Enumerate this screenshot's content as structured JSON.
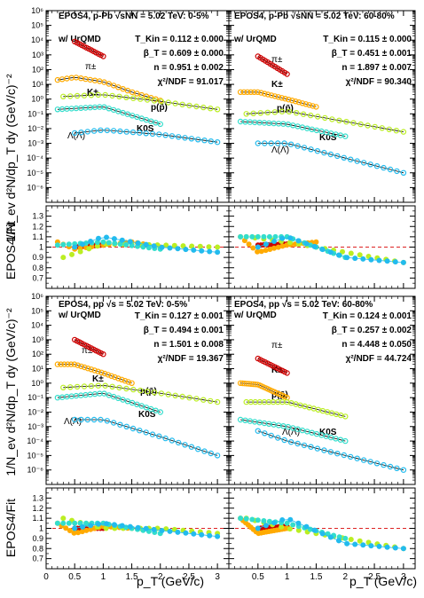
{
  "figure": {
    "ylabel_spectra": "1/N_ev d²N/dp_T dy (GeV/c)⁻²",
    "ylabel_ratio": "EPOS4/Fit",
    "xlabel": "p_T (GeV/c)"
  },
  "colors": {
    "pion": "#cc0000",
    "kaon": "#ffaa00",
    "proton": "#bbee22",
    "kshort": "#33ddcc",
    "lambda": "#22bbee",
    "fit_line": "#000000",
    "unity_line": "#dd2222"
  },
  "chart_data": [
    {
      "type": "scatter",
      "panel": "top-left",
      "title": "EPOS4, p-Pb √sNN = 5.02 TeV: 0-5%",
      "subtitle": "w/ UrQMD",
      "fit": {
        "tkin": "T_Kin = 0.112 ± 0.000",
        "beta": "β_T = 0.609 ± 0.000",
        "n": "n = 0.951 ± 0.002",
        "chi2": "χ²/NDF = 91.017"
      },
      "yscale": "log",
      "ylim": [
        1e-07,
        1000000.0
      ],
      "xlim": [
        0,
        3.2
      ],
      "species_labels": {
        "pion": "π±",
        "kaon": "K±",
        "proton": "p(p̄)",
        "kshort": "K0S",
        "lambda": "Λ(Λ̄)"
      },
      "series": [
        {
          "name": "π±",
          "key": "pion",
          "x": [
            0.5,
            1.0
          ],
          "y": [
            8000,
            800
          ]
        },
        {
          "name": "K±",
          "key": "kaon",
          "x": [
            0.2,
            0.5,
            1.0,
            1.5,
            2.0
          ],
          "y": [
            20,
            30,
            15,
            3,
            0.8
          ]
        },
        {
          "name": "p(p̄)",
          "key": "proton",
          "x": [
            0.3,
            1.0,
            2.0,
            3.0
          ],
          "y": [
            1.5,
            2,
            0.7,
            0.2
          ]
        },
        {
          "name": "K0S",
          "key": "kshort",
          "x": [
            0.2,
            1.0,
            2.0
          ],
          "y": [
            0.2,
            0.3,
            0.02
          ]
        },
        {
          "name": "Λ(Λ̄)",
          "key": "lambda",
          "x": [
            0.5,
            1.0,
            2.0,
            3.0
          ],
          "y": [
            0.005,
            0.008,
            0.004,
            0.0012
          ]
        }
      ],
      "ratio": {
        "ylim": [
          0.6,
          1.4
        ],
        "series": [
          {
            "key": "pion",
            "x": [
              0.5,
              1.0
            ],
            "y": [
              1.0,
              1.02
            ]
          },
          {
            "key": "kaon",
            "x": [
              0.2,
              0.5,
              1.0,
              1.5,
              2.0
            ],
            "y": [
              1.05,
              0.98,
              1.02,
              1.05,
              1.0
            ]
          },
          {
            "key": "proton",
            "x": [
              0.3,
              1.0,
              2.0,
              3.0
            ],
            "y": [
              0.9,
              1.03,
              1.02,
              1.0
            ]
          },
          {
            "key": "kshort",
            "x": [
              0.2,
              1.0,
              2.0
            ],
            "y": [
              1.02,
              1.05,
              0.98
            ]
          },
          {
            "key": "lambda",
            "x": [
              0.5,
              1.0,
              2.0,
              3.0
            ],
            "y": [
              1.0,
              1.1,
              1.0,
              0.95
            ]
          }
        ]
      }
    },
    {
      "type": "scatter",
      "panel": "top-right",
      "title": "EPOS4, p-Pb √sNN = 5.02 TeV: 60-80%",
      "subtitle": "w/ UrQMD",
      "fit": {
        "tkin": "T_Kin = 0.115 ± 0.000",
        "beta": "β_T = 0.451 ± 0.001",
        "n": "n = 1.897 ± 0.007",
        "chi2": "χ²/NDF = 90.340"
      },
      "yscale": "log",
      "ylim": [
        1e-07,
        1000000.0
      ],
      "xlim": [
        0,
        3.2
      ],
      "species_labels": {
        "pion": "π±",
        "kaon": "K±",
        "proton": "p(p̄)",
        "kshort": "K0S",
        "lambda": "Λ(Λ̄)"
      },
      "series": [
        {
          "name": "π±",
          "key": "pion",
          "x": [
            0.5,
            1.0
          ],
          "y": [
            800,
            50
          ]
        },
        {
          "name": "K±",
          "key": "kaon",
          "x": [
            0.2,
            0.5,
            1.0,
            1.5
          ],
          "y": [
            3,
            3,
            1,
            0.3
          ]
        },
        {
          "name": "p(p̄)",
          "key": "proton",
          "x": [
            0.3,
            1.0,
            2.0,
            3.0
          ],
          "y": [
            0.1,
            0.15,
            0.03,
            0.006
          ]
        },
        {
          "name": "K0S",
          "key": "kshort",
          "x": [
            0.2,
            1.0,
            2.0
          ],
          "y": [
            0.03,
            0.02,
            0.003
          ]
        },
        {
          "name": "Λ(Λ̄)",
          "key": "lambda",
          "x": [
            0.5,
            1.0,
            2.0,
            3.0
          ],
          "y": [
            0.001,
            0.001,
            0.0001,
            1e-05
          ]
        }
      ],
      "ratio": {
        "ylim": [
          0.6,
          1.4
        ],
        "series": [
          {
            "key": "pion",
            "x": [
              0.5,
              1.0
            ],
            "y": [
              1.02,
              1.03
            ]
          },
          {
            "key": "kaon",
            "x": [
              0.2,
              0.5,
              1.0,
              1.5
            ],
            "y": [
              1.1,
              0.95,
              1.02,
              1.05
            ]
          },
          {
            "key": "proton",
            "x": [
              0.3,
              1.0,
              2.0,
              3.0
            ],
            "y": [
              1.1,
              1.05,
              0.95,
              0.85
            ]
          },
          {
            "key": "kshort",
            "x": [
              0.2,
              1.0,
              2.0
            ],
            "y": [
              1.1,
              1.1,
              0.9
            ]
          },
          {
            "key": "lambda",
            "x": [
              0.5,
              1.0,
              2.0,
              3.0
            ],
            "y": [
              1.0,
              1.1,
              0.9,
              0.85
            ]
          }
        ]
      }
    },
    {
      "type": "scatter",
      "panel": "bottom-left",
      "title": "EPOS4, pp √s = 5.02 TeV: 0-5%",
      "subtitle": "w/ UrQMD",
      "fit": {
        "tkin": "T_Kin = 0.127 ± 0.001",
        "beta": "β_T = 0.494 ± 0.001",
        "n": "n = 1.501 ± 0.008",
        "chi2": "χ²/NDF = 19.367"
      },
      "yscale": "log",
      "ylim": [
        1e-07,
        1000000.0
      ],
      "xlim": [
        0,
        3.2
      ],
      "species_labels": {
        "pion": "π±",
        "kaon": "K±",
        "proton": "p(p̄)",
        "kshort": "K0S",
        "lambda": "Λ(Λ̄)"
      },
      "series": [
        {
          "name": "π±",
          "key": "pion",
          "x": [
            0.5,
            1.0
          ],
          "y": [
            1000,
            100
          ]
        },
        {
          "name": "K±",
          "key": "kaon",
          "x": [
            0.2,
            0.5,
            1.0,
            1.5
          ],
          "y": [
            20,
            20,
            5,
            1
          ]
        },
        {
          "name": "p(p̄)",
          "key": "proton",
          "x": [
            0.3,
            1.0,
            2.0,
            3.0
          ],
          "y": [
            0.5,
            0.7,
            0.2,
            0.05
          ]
        },
        {
          "name": "K0S",
          "key": "kshort",
          "x": [
            0.2,
            1.0,
            2.0
          ],
          "y": [
            0.1,
            0.2,
            0.01
          ]
        },
        {
          "name": "Λ(Λ̄)",
          "key": "lambda",
          "x": [
            0.5,
            1.0,
            2.0,
            3.0
          ],
          "y": [
            0.003,
            0.003,
            0.0002,
            1e-05
          ]
        }
      ],
      "ratio": {
        "ylim": [
          0.6,
          1.4
        ],
        "series": [
          {
            "key": "pion",
            "x": [
              0.5,
              1.0
            ],
            "y": [
              1.0,
              1.0
            ]
          },
          {
            "key": "kaon",
            "x": [
              0.2,
              0.5,
              1.0,
              1.5
            ],
            "y": [
              1.05,
              0.95,
              1.02,
              1.0
            ]
          },
          {
            "key": "proton",
            "x": [
              0.3,
              1.0,
              2.0,
              3.0
            ],
            "y": [
              1.1,
              1.0,
              1.0,
              0.95
            ]
          },
          {
            "key": "kshort",
            "x": [
              0.2,
              1.0,
              2.0
            ],
            "y": [
              1.05,
              1.05,
              0.95
            ]
          },
          {
            "key": "lambda",
            "x": [
              0.5,
              1.0,
              2.0,
              3.0
            ],
            "y": [
              1.0,
              1.05,
              0.98,
              0.92
            ]
          }
        ]
      }
    },
    {
      "type": "scatter",
      "panel": "bottom-right",
      "title": "EPOS4, pp √s = 5.02 TeV: 60-80%",
      "subtitle": "w/ UrQMD",
      "fit": {
        "tkin": "T_Kin = 0.124 ± 0.001",
        "beta": "β_T = 0.257 ± 0.002",
        "n": "n = 4.448 ± 0.050",
        "chi2": "χ²/NDF = 44.724"
      },
      "yscale": "log",
      "ylim": [
        1e-07,
        1000000.0
      ],
      "xlim": [
        0,
        3.2
      ],
      "species_labels": {
        "pion": "π±",
        "kaon": "K±",
        "proton": "p(p̄)",
        "kshort": "K0S",
        "lambda": "Λ(Λ̄)"
      },
      "series": [
        {
          "name": "π±",
          "key": "pion",
          "x": [
            0.5,
            1.0
          ],
          "y": [
            50,
            5
          ]
        },
        {
          "name": "K±",
          "key": "kaon",
          "x": [
            0.2,
            0.5,
            1.0
          ],
          "y": [
            1,
            0.8,
            0.1
          ]
        },
        {
          "name": "p(p̄)",
          "key": "proton",
          "x": [
            0.3,
            1.0,
            2.0
          ],
          "y": [
            0.05,
            0.05,
            0.005
          ]
        },
        {
          "name": "K0S",
          "key": "kshort",
          "x": [
            0.2,
            1.0,
            2.0
          ],
          "y": [
            0.003,
            0.001,
            0.0001
          ]
        },
        {
          "name": "Λ(Λ̄)",
          "key": "lambda",
          "x": [
            0.5,
            1.0,
            2.0,
            3.0
          ],
          "y": [
            0.0005,
            0.0001,
            1e-05,
            1e-06
          ]
        }
      ],
      "ratio": {
        "ylim": [
          0.6,
          1.4
        ],
        "series": [
          {
            "key": "pion",
            "x": [
              0.5,
              1.0
            ],
            "y": [
              1.0,
              1.02
            ]
          },
          {
            "key": "kaon",
            "x": [
              0.2,
              0.5,
              1.0
            ],
            "y": [
              1.1,
              0.95,
              1.0
            ]
          },
          {
            "key": "proton",
            "x": [
              0.3,
              1.0,
              2.0,
              3.0
            ],
            "y": [
              1.1,
              1.0,
              0.9,
              0.8
            ]
          },
          {
            "key": "kshort",
            "x": [
              0.2,
              1.0,
              2.0
            ],
            "y": [
              1.1,
              1.05,
              0.9
            ]
          },
          {
            "key": "lambda",
            "x": [
              0.5,
              1.0,
              2.0,
              3.0
            ],
            "y": [
              1.0,
              1.1,
              0.85,
              0.8
            ]
          }
        ]
      }
    }
  ]
}
